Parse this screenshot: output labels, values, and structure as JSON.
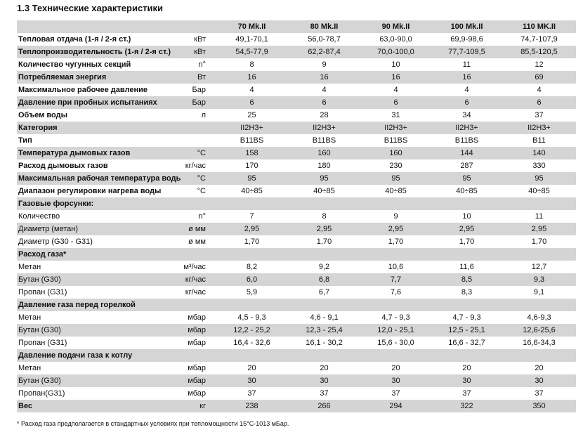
{
  "section_title": "1.3  Технические характеристики",
  "models": [
    "70 Mk.II",
    "80 Mk.II",
    "90 Mk.II",
    "100 Mk.II",
    "110 MK.II"
  ],
  "rows": [
    {
      "label": "Тепловая отдача (1-я / 2-я ст.)",
      "unit": "кВт",
      "bold": true,
      "values": [
        "49,1-70,1",
        "56,0-78,7",
        "63,0-90,0",
        "69,9-98,6",
        "74,7-107,9"
      ]
    },
    {
      "label": "Теплопроизводительность (1-я / 2-я ст.)",
      "unit": "кВт",
      "bold": true,
      "values": [
        "54,5-77,9",
        "62,2-87,4",
        "70,0-100,0",
        "77,7-109,5",
        "85,5-120,5"
      ]
    },
    {
      "label": "Количество чугунных секций",
      "unit": "n°",
      "bold": true,
      "values": [
        "8",
        "9",
        "10",
        "11",
        "12"
      ]
    },
    {
      "label": "Потребляемая энергия",
      "unit": "Вт",
      "bold": true,
      "values": [
        "16",
        "16",
        "16",
        "16",
        "69"
      ]
    },
    {
      "label": "Максимальное рабочее давление",
      "unit": "Бар",
      "bold": true,
      "values": [
        "4",
        "4",
        "4",
        "4",
        "4"
      ]
    },
    {
      "label": "Давление при пробных испытаниях",
      "unit": "Бар",
      "bold": true,
      "values": [
        "6",
        "6",
        "6",
        "6",
        "6"
      ]
    },
    {
      "label": "Объем воды",
      "unit": "л",
      "bold": true,
      "values": [
        "25",
        "28",
        "31",
        "34",
        "37"
      ]
    },
    {
      "label": "Категория",
      "unit": "",
      "bold": true,
      "values": [
        "II2H3+",
        "II2H3+",
        "II2H3+",
        "II2H3+",
        "II2H3+"
      ]
    },
    {
      "label": "Тип",
      "unit": "",
      "bold": true,
      "values": [
        "B11BS",
        "B11BS",
        "B11BS",
        "B11BS",
        "B11"
      ]
    },
    {
      "label": "Температура дымовых газов",
      "unit": "°C",
      "bold": true,
      "values": [
        "158",
        "160",
        "160",
        "144",
        "140"
      ]
    },
    {
      "label": "Расход дымовых газов",
      "unit": "кг/час",
      "bold": true,
      "values": [
        "170",
        "180",
        "230",
        "287",
        "330"
      ]
    },
    {
      "label": "Максимальная рабочая температура воды",
      "unit": "°C",
      "bold": true,
      "values": [
        "95",
        "95",
        "95",
        "95",
        "95"
      ]
    },
    {
      "label": "Диапазон регулировки нагрева воды",
      "unit": "°C",
      "bold": true,
      "values": [
        "40÷85",
        "40÷85",
        "40÷85",
        "40÷85",
        "40÷85"
      ]
    },
    {
      "label": "Газовые форсунки:",
      "unit": "",
      "bold": true,
      "values": [
        "",
        "",
        "",
        "",
        ""
      ]
    },
    {
      "label": "Количество",
      "unit": "n°",
      "bold": false,
      "values": [
        "7",
        "8",
        "9",
        "10",
        "11"
      ]
    },
    {
      "label": "Диаметр (метан)",
      "unit": "ø мм",
      "bold": false,
      "values": [
        "2,95",
        "2,95",
        "2,95",
        "2,95",
        "2,95"
      ]
    },
    {
      "label": "Диаметр (G30 - G31)",
      "unit": "ø мм",
      "bold": false,
      "values": [
        "1,70",
        "1,70",
        "1,70",
        "1,70",
        "1,70"
      ]
    },
    {
      "label": "Расход газа*",
      "unit": "",
      "bold": true,
      "values": [
        "",
        "",
        "",
        "",
        ""
      ]
    },
    {
      "label": "Метан",
      "unit": "м³/час",
      "bold": false,
      "values": [
        "8,2",
        "9,2",
        "10,6",
        "11,6",
        "12,7"
      ]
    },
    {
      "label": "Бутан (G30)",
      "unit": "кг/час",
      "bold": false,
      "values": [
        "6,0",
        "6,8",
        "7,7",
        "8,5",
        "9,3"
      ]
    },
    {
      "label": "Пропан (G31)",
      "unit": "кг/час",
      "bold": false,
      "values": [
        "5,9",
        "6,7",
        "7,6",
        "8,3",
        "9,1"
      ]
    },
    {
      "label": "Давление газа перед горелкой",
      "unit": "",
      "bold": true,
      "values": [
        "",
        "",
        "",
        "",
        ""
      ]
    },
    {
      "label": "Метан",
      "unit": "мбар",
      "bold": false,
      "values": [
        "4,5 - 9,3",
        "4,6 - 9,1",
        "4,7 - 9,3",
        "4,7 - 9,3",
        "4,6-9,3"
      ]
    },
    {
      "label": "Бутан (G30)",
      "unit": "мбар",
      "bold": false,
      "values": [
        "12,2 - 25,2",
        "12,3 - 25,4",
        "12,0 - 25,1",
        "12,5 - 25,1",
        "12,6-25,6"
      ]
    },
    {
      "label": "Пропан (G31)",
      "unit": "мбар",
      "bold": false,
      "values": [
        "16,4 - 32,6",
        "16,1 - 30,2",
        "15,6 - 30,0",
        "16,6 - 32,7",
        "16,6-34,3"
      ]
    },
    {
      "label": "Давление подачи газа к котлу",
      "unit": "",
      "bold": true,
      "values": [
        "",
        "",
        "",
        "",
        ""
      ]
    },
    {
      "label": "Метан",
      "unit": "мбар",
      "bold": false,
      "values": [
        "20",
        "20",
        "20",
        "20",
        "20"
      ]
    },
    {
      "label": "Бутан (G30)",
      "unit": "мбар",
      "bold": false,
      "values": [
        "30",
        "30",
        "30",
        "30",
        "30"
      ]
    },
    {
      "label": "Пропан(G31)",
      "unit": "мбар",
      "bold": false,
      "values": [
        "37",
        "37",
        "37",
        "37",
        "37"
      ]
    },
    {
      "label": "Вес",
      "unit": "кг",
      "bold": true,
      "values": [
        "238",
        "266",
        "294",
        "322",
        "350"
      ]
    }
  ],
  "footnote": "* Расход газа предполагается в стандартных условиях при тепломощности 15°C-1013 мБар.",
  "colors": {
    "shade": "#d5d5d5",
    "plain": "#ffffff"
  }
}
